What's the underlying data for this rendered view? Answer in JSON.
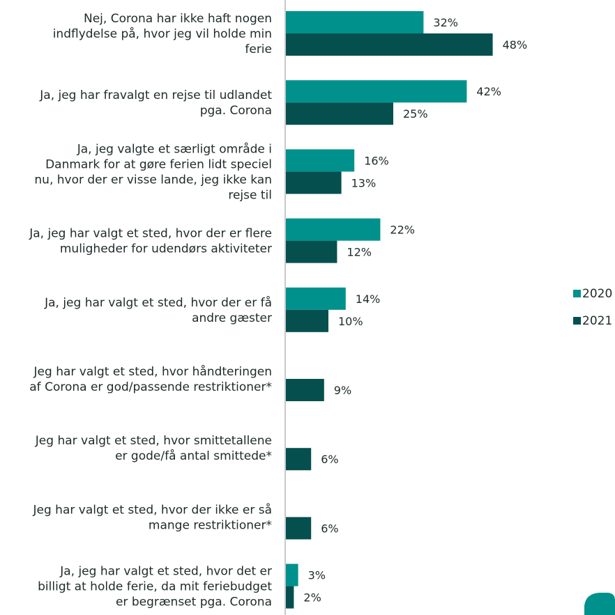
{
  "chart_data": {
    "type": "bar",
    "orientation": "horizontal",
    "categories": [
      [
        "Nej, Corona har ikke haft nogen",
        "indflydelse på, hvor jeg vil holde min",
        "ferie"
      ],
      [
        "Ja, jeg har fravalgt en rejse til udlandet",
        "pga. Corona"
      ],
      [
        "Ja, jeg valgte et særligt område i",
        "Danmark for at gøre ferien lidt speciel",
        "nu, hvor der er visse lande, jeg ikke kan",
        "rejse til"
      ],
      [
        "Ja, jeg har valgt et sted, hvor der er flere",
        "muligheder for udendørs aktiviteter"
      ],
      [
        "Ja, jeg har valgt et sted, hvor der er få",
        "andre gæster"
      ],
      [
        "Jeg har valgt et sted, hvor håndteringen",
        "af Corona er god/passende restriktioner*"
      ],
      [
        "Jeg har valgt et sted, hvor smittetallene",
        "er gode/få antal smittede*"
      ],
      [
        "Jeg har valgt et sted, hvor der ikke er så",
        "mange restriktioner*"
      ],
      [
        "Ja, jeg har valgt et sted, hvor det er",
        "billigt at holde ferie, da mit feriebudget",
        "er begrænset pga. Corona"
      ]
    ],
    "series": [
      {
        "name": "2020",
        "color": "#00918c",
        "values": [
          32,
          42,
          16,
          22,
          14,
          null,
          null,
          null,
          3
        ],
        "labels": [
          "32%",
          "42%",
          "16%",
          "22%",
          "14%",
          null,
          null,
          null,
          "3%"
        ]
      },
      {
        "name": "2021",
        "color": "#064f4f",
        "values": [
          48,
          25,
          13,
          12,
          10,
          9,
          6,
          6,
          2
        ],
        "labels": [
          "48%",
          "25%",
          "13%",
          "12%",
          "10%",
          "9%",
          "6%",
          "6%",
          "2%"
        ]
      }
    ],
    "value_unit": "%",
    "xlim": [
      0,
      50
    ],
    "grid": false,
    "legend_position": "right"
  }
}
